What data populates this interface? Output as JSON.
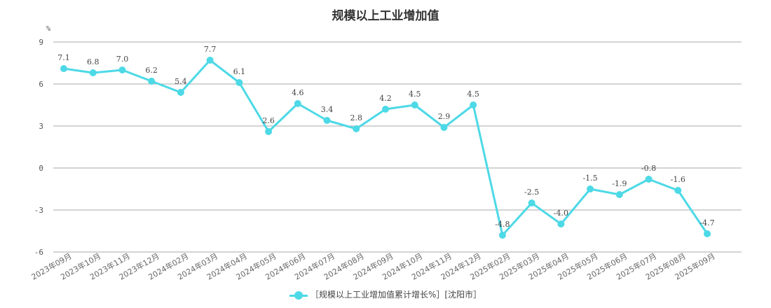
{
  "chart_data": {
    "type": "line",
    "title": "规模以上工业增加值",
    "y_unit": "%",
    "ylim": [
      -6,
      9
    ],
    "yticks": [
      9,
      6,
      3,
      0,
      -3,
      -6
    ],
    "grid": true,
    "legend_position": "bottom",
    "line_color": "#4dd9e6",
    "categories": [
      "2023年09月",
      "2023年10月",
      "2023年11月",
      "2023年12月",
      "2024年02月",
      "2024年03月",
      "2024年04月",
      "2024年05月",
      "2024年06月",
      "2024年07月",
      "2024年08月",
      "2024年09月",
      "2024年10月",
      "2024年11月",
      "2024年12月",
      "2025年02月",
      "2025年03月",
      "2025年04月",
      "2025年05月",
      "2025年06月",
      "2025年07月",
      "2025年08月",
      "2025年09月"
    ],
    "series": [
      {
        "name": "［规模以上工业增加值累计增长%］[沈阳市］",
        "values": [
          7.1,
          6.8,
          7.0,
          6.2,
          5.4,
          7.7,
          6.1,
          2.6,
          4.6,
          3.4,
          2.8,
          4.2,
          4.5,
          2.9,
          4.5,
          -4.8,
          -2.5,
          -4.0,
          -1.5,
          -1.9,
          -0.8,
          -1.6,
          -4.7
        ],
        "labels": [
          "7.1",
          "6.8",
          "7.0",
          "6.2",
          "5.4",
          "7.7",
          "6.1",
          "2.6",
          "4.6",
          "3.4",
          "2.8",
          "4.2",
          "4.5",
          "2.9",
          "4.5",
          "-4.8",
          "-2.5",
          "-4.0",
          "-1.5",
          "-1.9",
          "-0.8",
          "-1.6",
          "-4.7"
        ]
      }
    ]
  }
}
